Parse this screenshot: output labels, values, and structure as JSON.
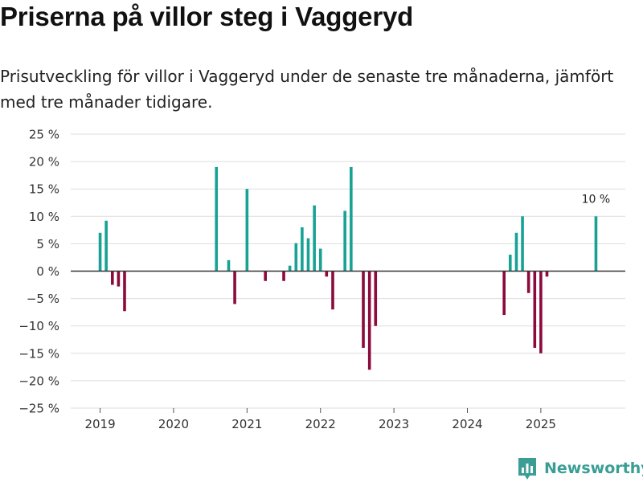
{
  "title": "Priserna på villor steg i Vaggeryd",
  "subtitle": "Prisutveckling för villor i Vaggeryd under de senaste tre månaderna, jämfört med tre månader tidigare.",
  "brand": {
    "name": "Newsworthy",
    "icon": "newsworthy-logo-icon"
  },
  "colors": {
    "positive": "#17a294",
    "negative": "#8c0a3c",
    "grid": "#dddddd",
    "axis": "#333333"
  },
  "chart_data": {
    "type": "bar",
    "title": "Priserna på villor steg i Vaggeryd",
    "xlabel": "",
    "ylabel": "",
    "unit": "%",
    "ylim": [
      -25,
      25
    ],
    "xlim": [
      2018.6,
      2026.15
    ],
    "yticks": [
      25,
      20,
      15,
      10,
      5,
      0,
      -5,
      -10,
      -15,
      -20,
      -25
    ],
    "ytick_labels": [
      "25 %",
      "20 %",
      "15 %",
      "10 %",
      "5 %",
      "0 %",
      "−5 %",
      "−10 %",
      "−15 %",
      "−20 %",
      "−25 %"
    ],
    "xticks": [
      2019,
      2020,
      2021,
      2022,
      2023,
      2024,
      2025
    ],
    "xtick_labels": [
      "2019",
      "2020",
      "2021",
      "2022",
      "2023",
      "2024",
      "2025"
    ],
    "grid": true,
    "annotation": {
      "x": 2025.75,
      "text": "10 %"
    },
    "series": [
      {
        "name": "Prisutveckling",
        "x": [
          2019.0,
          2019.083,
          2019.167,
          2019.25,
          2019.333,
          2020.583,
          2020.75,
          2020.833,
          2021.0,
          2021.25,
          2021.5,
          2021.583,
          2021.667,
          2021.75,
          2021.833,
          2021.917,
          2022.0,
          2022.083,
          2022.167,
          2022.333,
          2022.417,
          2022.583,
          2022.667,
          2022.75,
          2024.5,
          2024.583,
          2024.667,
          2024.75,
          2024.833,
          2024.917,
          2025.0,
          2025.083,
          2025.75
        ],
        "values": [
          7,
          9.2,
          -2.5,
          -2.8,
          -7.3,
          19,
          2,
          -6,
          15,
          -1.8,
          -1.8,
          1,
          5.1,
          8,
          6,
          12,
          4.1,
          -1,
          -7,
          11,
          19,
          -14,
          -18,
          -10,
          -8,
          3,
          7,
          10,
          -4,
          -14,
          -15,
          -1,
          10
        ]
      }
    ]
  }
}
